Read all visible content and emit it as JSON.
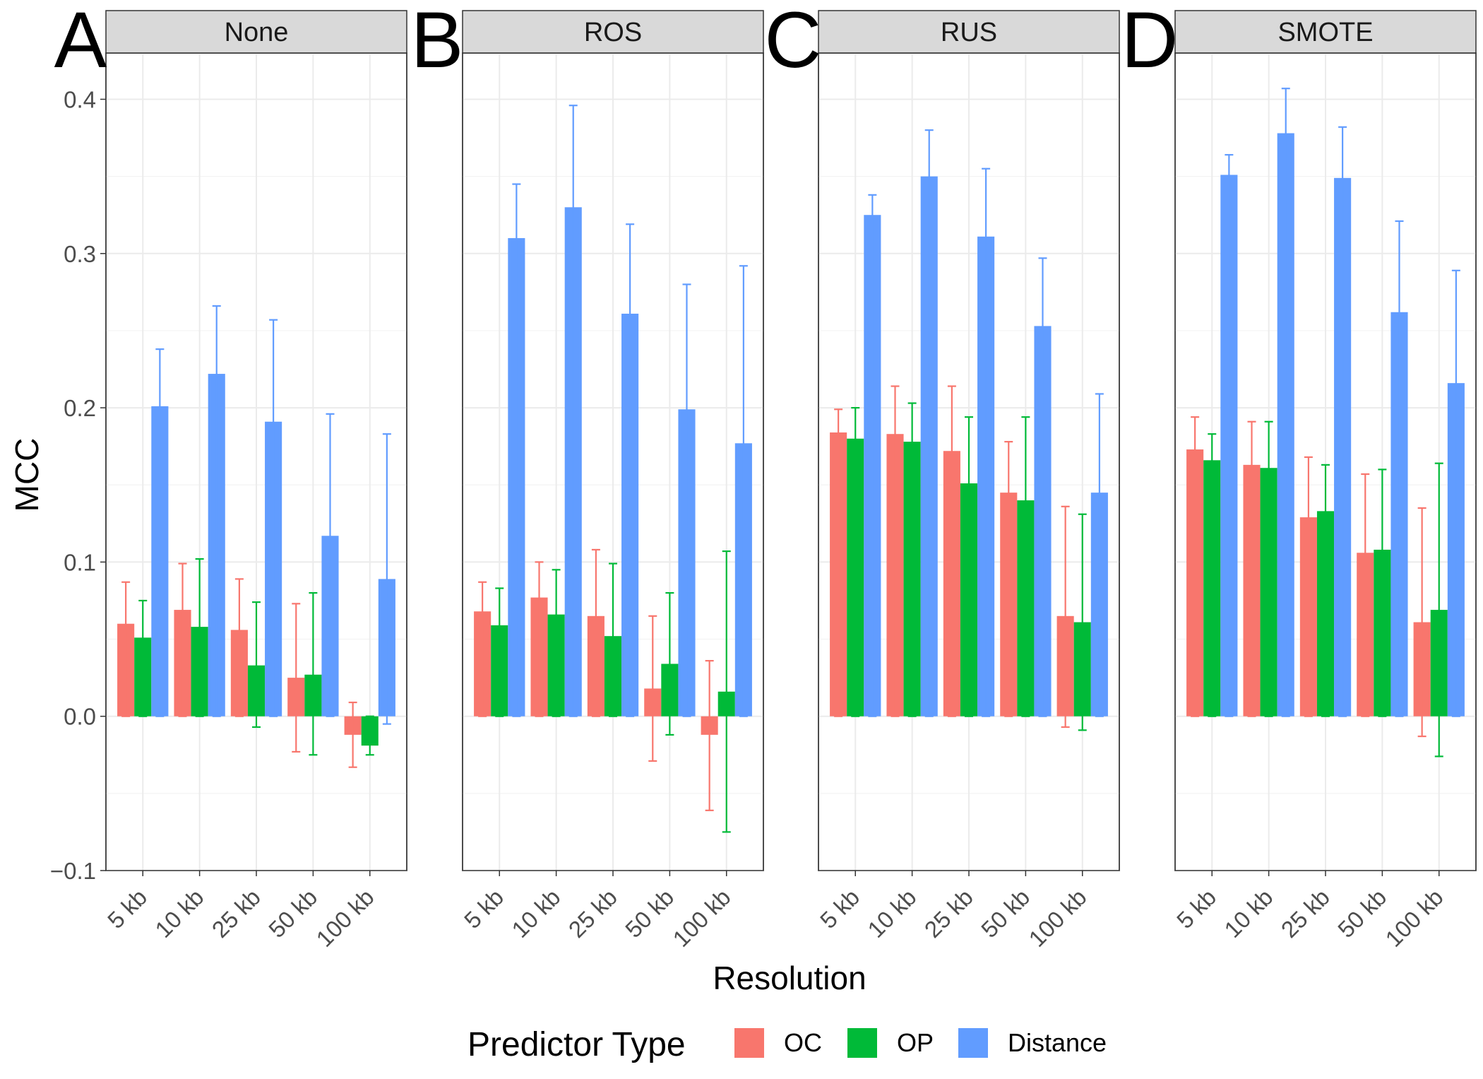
{
  "chart_data": {
    "type": "bar",
    "layout": "faceted-grouped-bar-with-error-bars",
    "xlabel": "Resolution",
    "ylabel": "MCC",
    "ylim": [
      -0.1,
      0.43
    ],
    "yticks": [
      -0.1,
      0.0,
      0.1,
      0.2,
      0.3,
      0.4
    ],
    "ytick_labels": [
      "−0.1",
      "0.0",
      "0.1",
      "0.2",
      "0.3",
      "0.4"
    ],
    "categories": [
      "5 kb",
      "10 kb",
      "25 kb",
      "50 kb",
      "100 kb"
    ],
    "grid": true,
    "legend": {
      "title": "Predictor Type",
      "position": "bottom",
      "entries": [
        {
          "name": "OC",
          "color": "#F8766D"
        },
        {
          "name": "OP",
          "color": "#00BA38"
        },
        {
          "name": "Distance",
          "color": "#619CFF"
        }
      ]
    },
    "panels": [
      {
        "tag": "A",
        "title": "None",
        "series": [
          {
            "name": "OC",
            "values": [
              0.06,
              0.069,
              0.056,
              0.025,
              -0.012
            ],
            "err_low": [
              0.0,
              0.0,
              0.0,
              -0.023,
              -0.033
            ],
            "err_high": [
              0.087,
              0.099,
              0.089,
              0.073,
              0.009
            ]
          },
          {
            "name": "OP",
            "values": [
              0.051,
              0.058,
              0.033,
              0.027,
              -0.019
            ],
            "err_low": [
              0.0,
              0.0,
              -0.007,
              -0.025,
              -0.025
            ],
            "err_high": [
              0.075,
              0.102,
              0.074,
              0.08,
              0.0
            ]
          },
          {
            "name": "Distance",
            "values": [
              0.201,
              0.222,
              0.191,
              0.117,
              0.089
            ],
            "err_low": [
              0.0,
              0.0,
              0.0,
              0.0,
              -0.005
            ],
            "err_high": [
              0.238,
              0.266,
              0.257,
              0.196,
              0.183
            ]
          }
        ]
      },
      {
        "tag": "B",
        "title": "ROS",
        "series": [
          {
            "name": "OC",
            "values": [
              0.068,
              0.077,
              0.065,
              0.018,
              -0.012
            ],
            "err_low": [
              0.0,
              0.0,
              0.0,
              -0.029,
              -0.061
            ],
            "err_high": [
              0.087,
              0.1,
              0.108,
              0.065,
              0.036
            ]
          },
          {
            "name": "OP",
            "values": [
              0.059,
              0.066,
              0.052,
              0.034,
              0.016
            ],
            "err_low": [
              0.0,
              0.0,
              0.0,
              -0.012,
              -0.075
            ],
            "err_high": [
              0.083,
              0.095,
              0.099,
              0.08,
              0.107
            ]
          },
          {
            "name": "Distance",
            "values": [
              0.31,
              0.33,
              0.261,
              0.199,
              0.177
            ],
            "err_low": [
              0.0,
              0.0,
              0.0,
              0.0,
              0.0
            ],
            "err_high": [
              0.345,
              0.396,
              0.319,
              0.28,
              0.292
            ]
          }
        ]
      },
      {
        "tag": "C",
        "title": "RUS",
        "series": [
          {
            "name": "OC",
            "values": [
              0.184,
              0.183,
              0.172,
              0.145,
              0.065
            ],
            "err_low": [
              0.0,
              0.0,
              0.0,
              0.0,
              -0.007
            ],
            "err_high": [
              0.199,
              0.214,
              0.214,
              0.178,
              0.136
            ]
          },
          {
            "name": "OP",
            "values": [
              0.18,
              0.178,
              0.151,
              0.14,
              0.061
            ],
            "err_low": [
              0.0,
              0.0,
              0.0,
              0.0,
              -0.009
            ],
            "err_high": [
              0.2,
              0.203,
              0.194,
              0.194,
              0.131
            ]
          },
          {
            "name": "Distance",
            "values": [
              0.325,
              0.35,
              0.311,
              0.253,
              0.145
            ],
            "err_low": [
              0.0,
              0.0,
              0.0,
              0.0,
              0.0
            ],
            "err_high": [
              0.338,
              0.38,
              0.355,
              0.297,
              0.209
            ]
          }
        ]
      },
      {
        "tag": "D",
        "title": "SMOTE",
        "series": [
          {
            "name": "OC",
            "values": [
              0.173,
              0.163,
              0.129,
              0.106,
              0.061
            ],
            "err_low": [
              0.0,
              0.0,
              0.0,
              0.0,
              -0.013
            ],
            "err_high": [
              0.194,
              0.191,
              0.168,
              0.157,
              0.135
            ]
          },
          {
            "name": "OP",
            "values": [
              0.166,
              0.161,
              0.133,
              0.108,
              0.069
            ],
            "err_low": [
              0.0,
              0.0,
              0.0,
              0.0,
              -0.026
            ],
            "err_high": [
              0.183,
              0.191,
              0.163,
              0.16,
              0.164
            ]
          },
          {
            "name": "Distance",
            "values": [
              0.351,
              0.378,
              0.349,
              0.262,
              0.216
            ],
            "err_low": [
              0.0,
              0.0,
              0.0,
              0.0,
              0.0
            ],
            "err_high": [
              0.364,
              0.407,
              0.382,
              0.321,
              0.289
            ]
          }
        ]
      }
    ]
  }
}
